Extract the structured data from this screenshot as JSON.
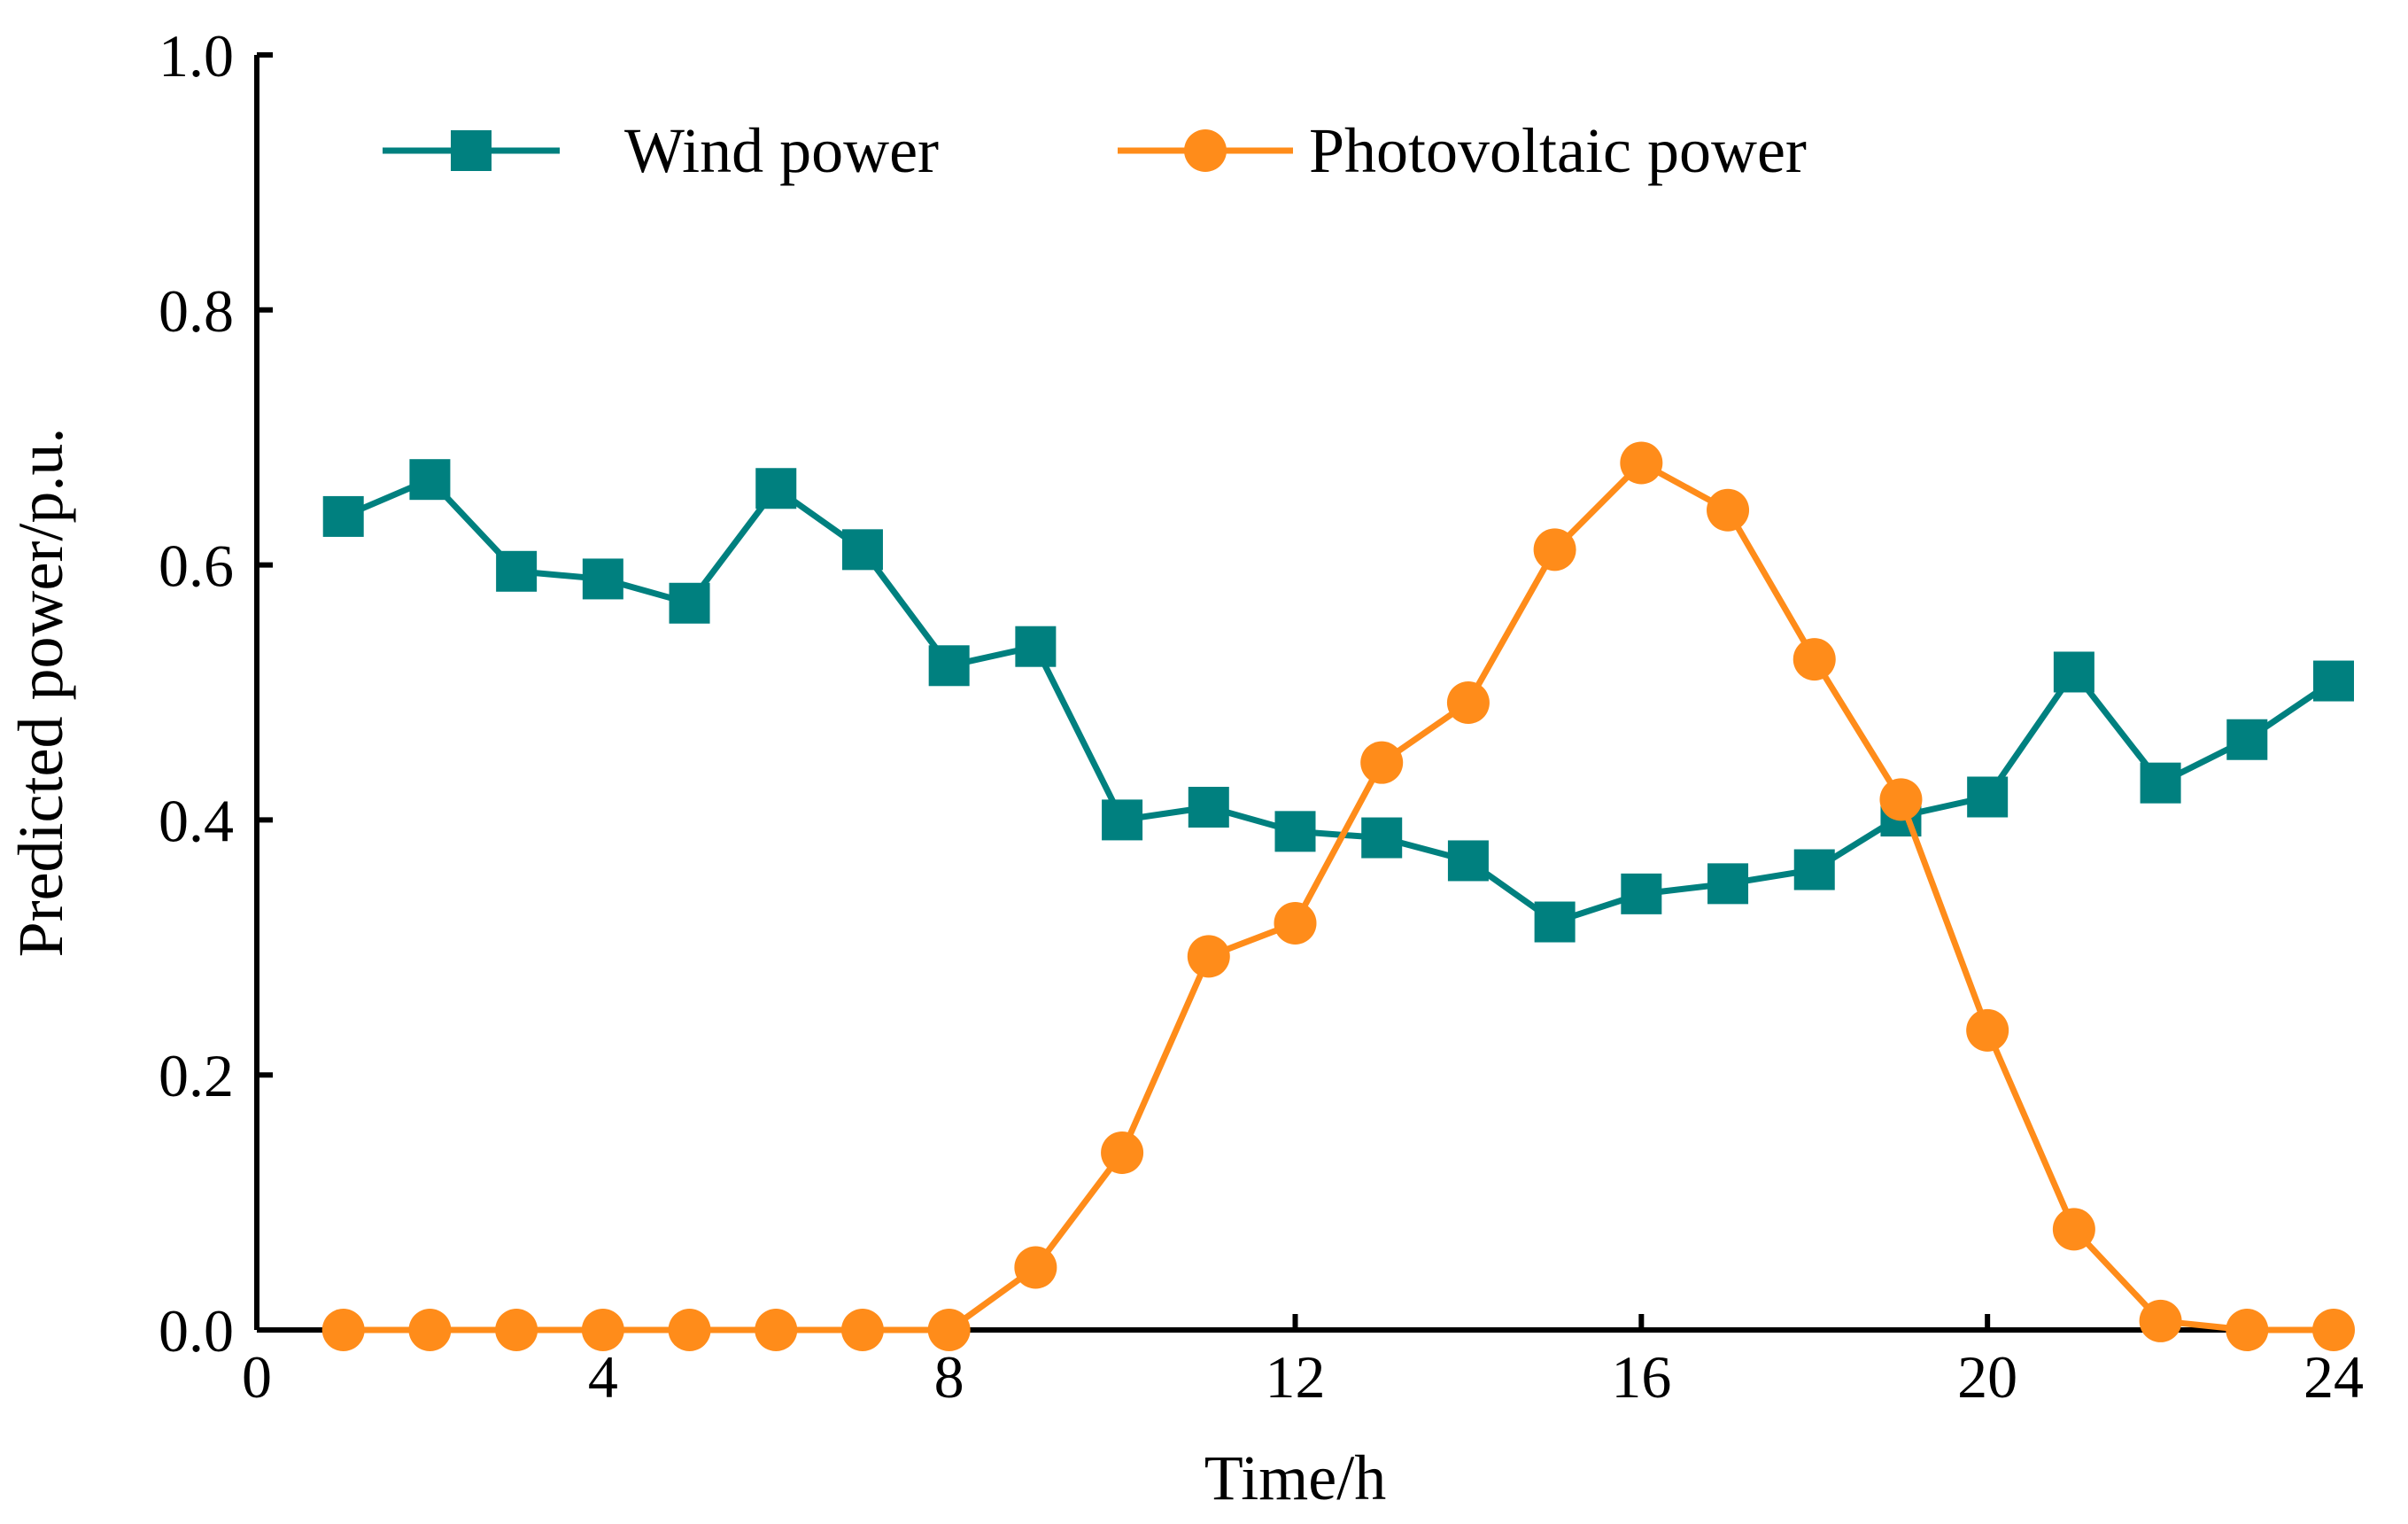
{
  "chart_data": {
    "type": "line",
    "title": "",
    "xlabel": "Time/h",
    "ylabel": "Predicted power/p.u.",
    "xlim": [
      0,
      24
    ],
    "ylim": [
      0.0,
      1.0
    ],
    "xticks": [
      0,
      4,
      8,
      12,
      16,
      20,
      24
    ],
    "yticks": [
      0.0,
      0.2,
      0.4,
      0.6,
      0.8,
      1.0
    ],
    "xtick_labels": [
      "0",
      "4",
      "8",
      "12",
      "16",
      "20",
      "24"
    ],
    "ytick_labels": [
      "0.0",
      "0.2",
      "0.4",
      "0.6",
      "0.8",
      "1.0"
    ],
    "grid": false,
    "legend_position": "top",
    "x": [
      1,
      2,
      3,
      4,
      5,
      6,
      7,
      8,
      9,
      10,
      11,
      12,
      13,
      14,
      15,
      16,
      17,
      18,
      19,
      20,
      21,
      22,
      23,
      24
    ],
    "series": [
      {
        "name": "Wind power",
        "color": "#00807f",
        "marker": "square",
        "values": [
          0.638,
          0.667,
          0.595,
          0.589,
          0.57,
          0.66,
          0.612,
          0.521,
          0.536,
          0.4,
          0.41,
          0.391,
          0.386,
          0.368,
          0.32,
          0.342,
          0.35,
          0.361,
          0.403,
          0.418,
          0.516,
          0.429,
          0.463,
          0.509
        ]
      },
      {
        "name": "Photovoltaic power",
        "color": "#ff8c1a",
        "marker": "circle",
        "values": [
          0.0,
          0.0,
          0.0,
          0.0,
          0.0,
          0.0,
          0.0,
          0.0,
          0.049,
          0.139,
          0.293,
          0.319,
          0.445,
          0.492,
          0.612,
          0.68,
          0.643,
          0.526,
          0.416,
          0.235,
          0.079,
          0.007,
          0.0,
          0.0
        ]
      }
    ]
  }
}
